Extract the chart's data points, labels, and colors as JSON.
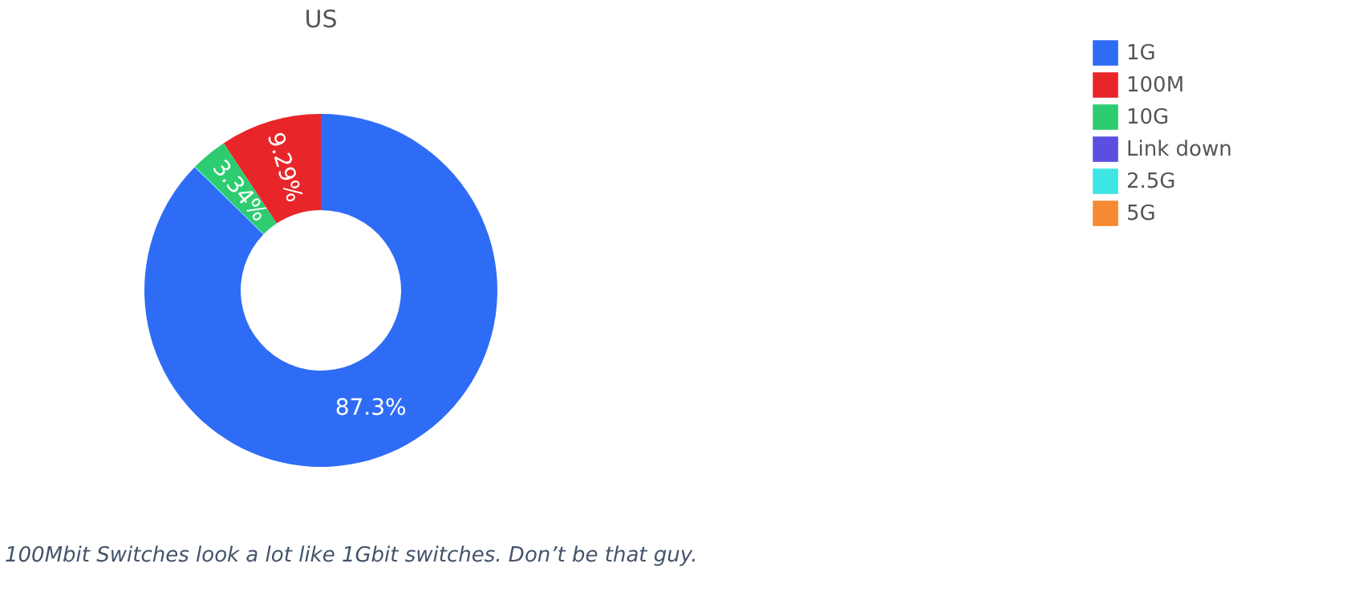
{
  "chart_data": {
    "type": "donut",
    "title": "US",
    "categories": [
      "1G",
      "100M",
      "10G",
      "Link down",
      "2.5G",
      "5G"
    ],
    "values": [
      87.3,
      9.29,
      3.34,
      0,
      0.07,
      0
    ],
    "colors": [
      "#2f6cf6",
      "#e8262a",
      "#2ecc71",
      "#5b4fe0",
      "#3fe6e6",
      "#f58a32"
    ],
    "value_labels": [
      "87.3%",
      "9.29%",
      "3.34%",
      null,
      null,
      null
    ],
    "legend": "top right",
    "annotations": [
      "100Mbit Switches look a lot like 1Gbit switches. Don’t be that guy."
    ]
  }
}
